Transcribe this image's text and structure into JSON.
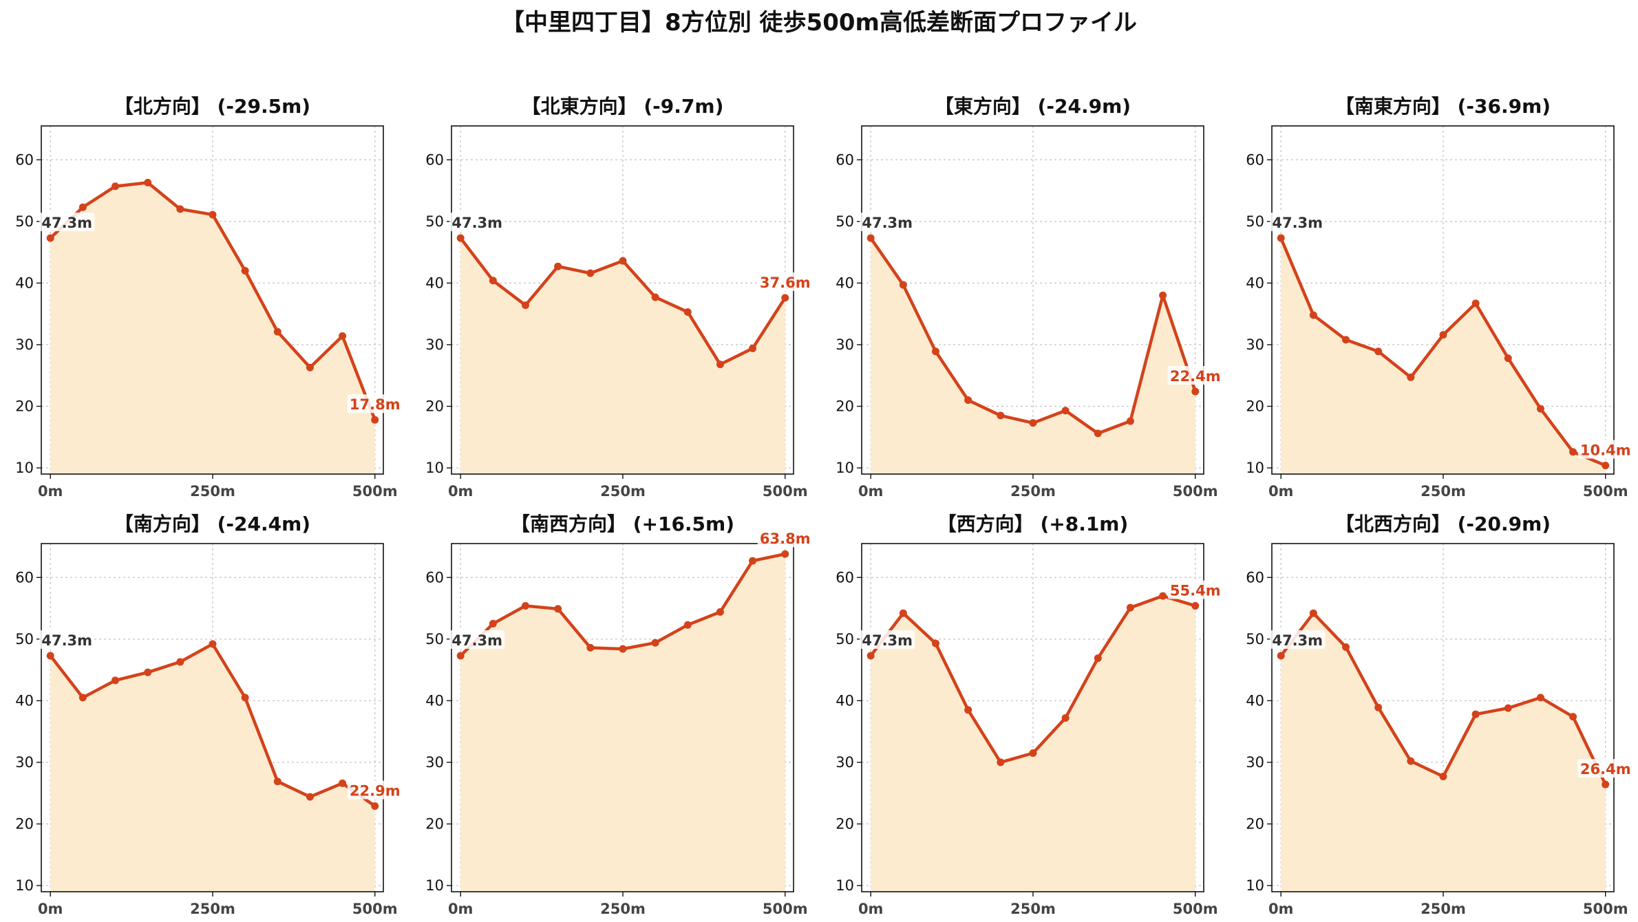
{
  "figure_title": "【中里四丁目】8方位別 徒歩500m高低差断面プロファイル",
  "colors": {
    "line": "#d4421a",
    "fill": "#fdebd0",
    "start_label": "#333333",
    "end_label": "#d4421a"
  },
  "chart_data": [
    {
      "type": "area",
      "title": "【北方向】 (-29.5m)",
      "x": [
        0,
        50,
        100,
        150,
        200,
        250,
        300,
        350,
        400,
        450,
        500
      ],
      "values": [
        47.3,
        52.3,
        55.7,
        56.3,
        52.0,
        51.1,
        42.0,
        32.1,
        26.3,
        31.4,
        17.8
      ],
      "start_label": "47.3m",
      "end_label": "17.8m"
    },
    {
      "type": "area",
      "title": "【北東方向】 (-9.7m)",
      "x": [
        0,
        50,
        100,
        150,
        200,
        250,
        300,
        350,
        400,
        450,
        500
      ],
      "values": [
        47.3,
        40.4,
        36.4,
        42.7,
        41.6,
        43.6,
        37.7,
        35.3,
        26.8,
        29.4,
        37.6
      ],
      "start_label": "47.3m",
      "end_label": "37.6m"
    },
    {
      "type": "area",
      "title": "【東方向】 (-24.9m)",
      "x": [
        0,
        50,
        100,
        150,
        200,
        250,
        300,
        350,
        400,
        450,
        500
      ],
      "values": [
        47.3,
        39.7,
        28.9,
        21.0,
        18.5,
        17.3,
        19.3,
        15.6,
        17.6,
        38.0,
        22.4
      ],
      "start_label": "47.3m",
      "end_label": "22.4m"
    },
    {
      "type": "area",
      "title": "【南東方向】 (-36.9m)",
      "x": [
        0,
        50,
        100,
        150,
        200,
        250,
        300,
        350,
        400,
        450,
        500
      ],
      "values": [
        47.3,
        34.8,
        30.8,
        28.9,
        24.7,
        31.6,
        36.7,
        27.8,
        19.6,
        12.6,
        10.4
      ],
      "start_label": "47.3m",
      "end_label": "10.4m"
    },
    {
      "type": "area",
      "title": "【南方向】 (-24.4m)",
      "x": [
        0,
        50,
        100,
        150,
        200,
        250,
        300,
        350,
        400,
        450,
        500
      ],
      "values": [
        47.3,
        40.5,
        43.3,
        44.6,
        46.3,
        49.2,
        40.5,
        26.9,
        24.4,
        26.6,
        22.9
      ],
      "start_label": "47.3m",
      "end_label": "22.9m"
    },
    {
      "type": "area",
      "title": "【南西方向】 (+16.5m)",
      "x": [
        0,
        50,
        100,
        150,
        200,
        250,
        300,
        350,
        400,
        450,
        500
      ],
      "values": [
        47.3,
        52.5,
        55.4,
        54.9,
        48.6,
        48.4,
        49.4,
        52.3,
        54.4,
        62.7,
        63.8
      ],
      "start_label": "47.3m",
      "end_label": "63.8m"
    },
    {
      "type": "area",
      "title": "【西方向】 (+8.1m)",
      "x": [
        0,
        50,
        100,
        150,
        200,
        250,
        300,
        350,
        400,
        450,
        500
      ],
      "values": [
        47.3,
        54.2,
        49.3,
        38.5,
        30.0,
        31.5,
        37.2,
        46.9,
        55.1,
        57.0,
        55.4
      ],
      "start_label": "47.3m",
      "end_label": "55.4m"
    },
    {
      "type": "area",
      "title": "【北西方向】 (-20.9m)",
      "x": [
        0,
        50,
        100,
        150,
        200,
        250,
        300,
        350,
        400,
        450,
        500
      ],
      "values": [
        47.3,
        54.2,
        48.7,
        38.9,
        30.2,
        27.7,
        37.8,
        38.8,
        40.5,
        37.4,
        26.4
      ],
      "start_label": "47.3m",
      "end_label": "26.4m"
    }
  ],
  "axes": {
    "ylim": [
      9,
      65.5
    ],
    "yticks": [
      10,
      20,
      30,
      40,
      50,
      60
    ],
    "xlim": [
      -14,
      513
    ],
    "xticks": [
      0,
      250,
      500
    ],
    "xtick_labels": [
      "0m",
      "250m",
      "500m"
    ],
    "grid": true
  }
}
